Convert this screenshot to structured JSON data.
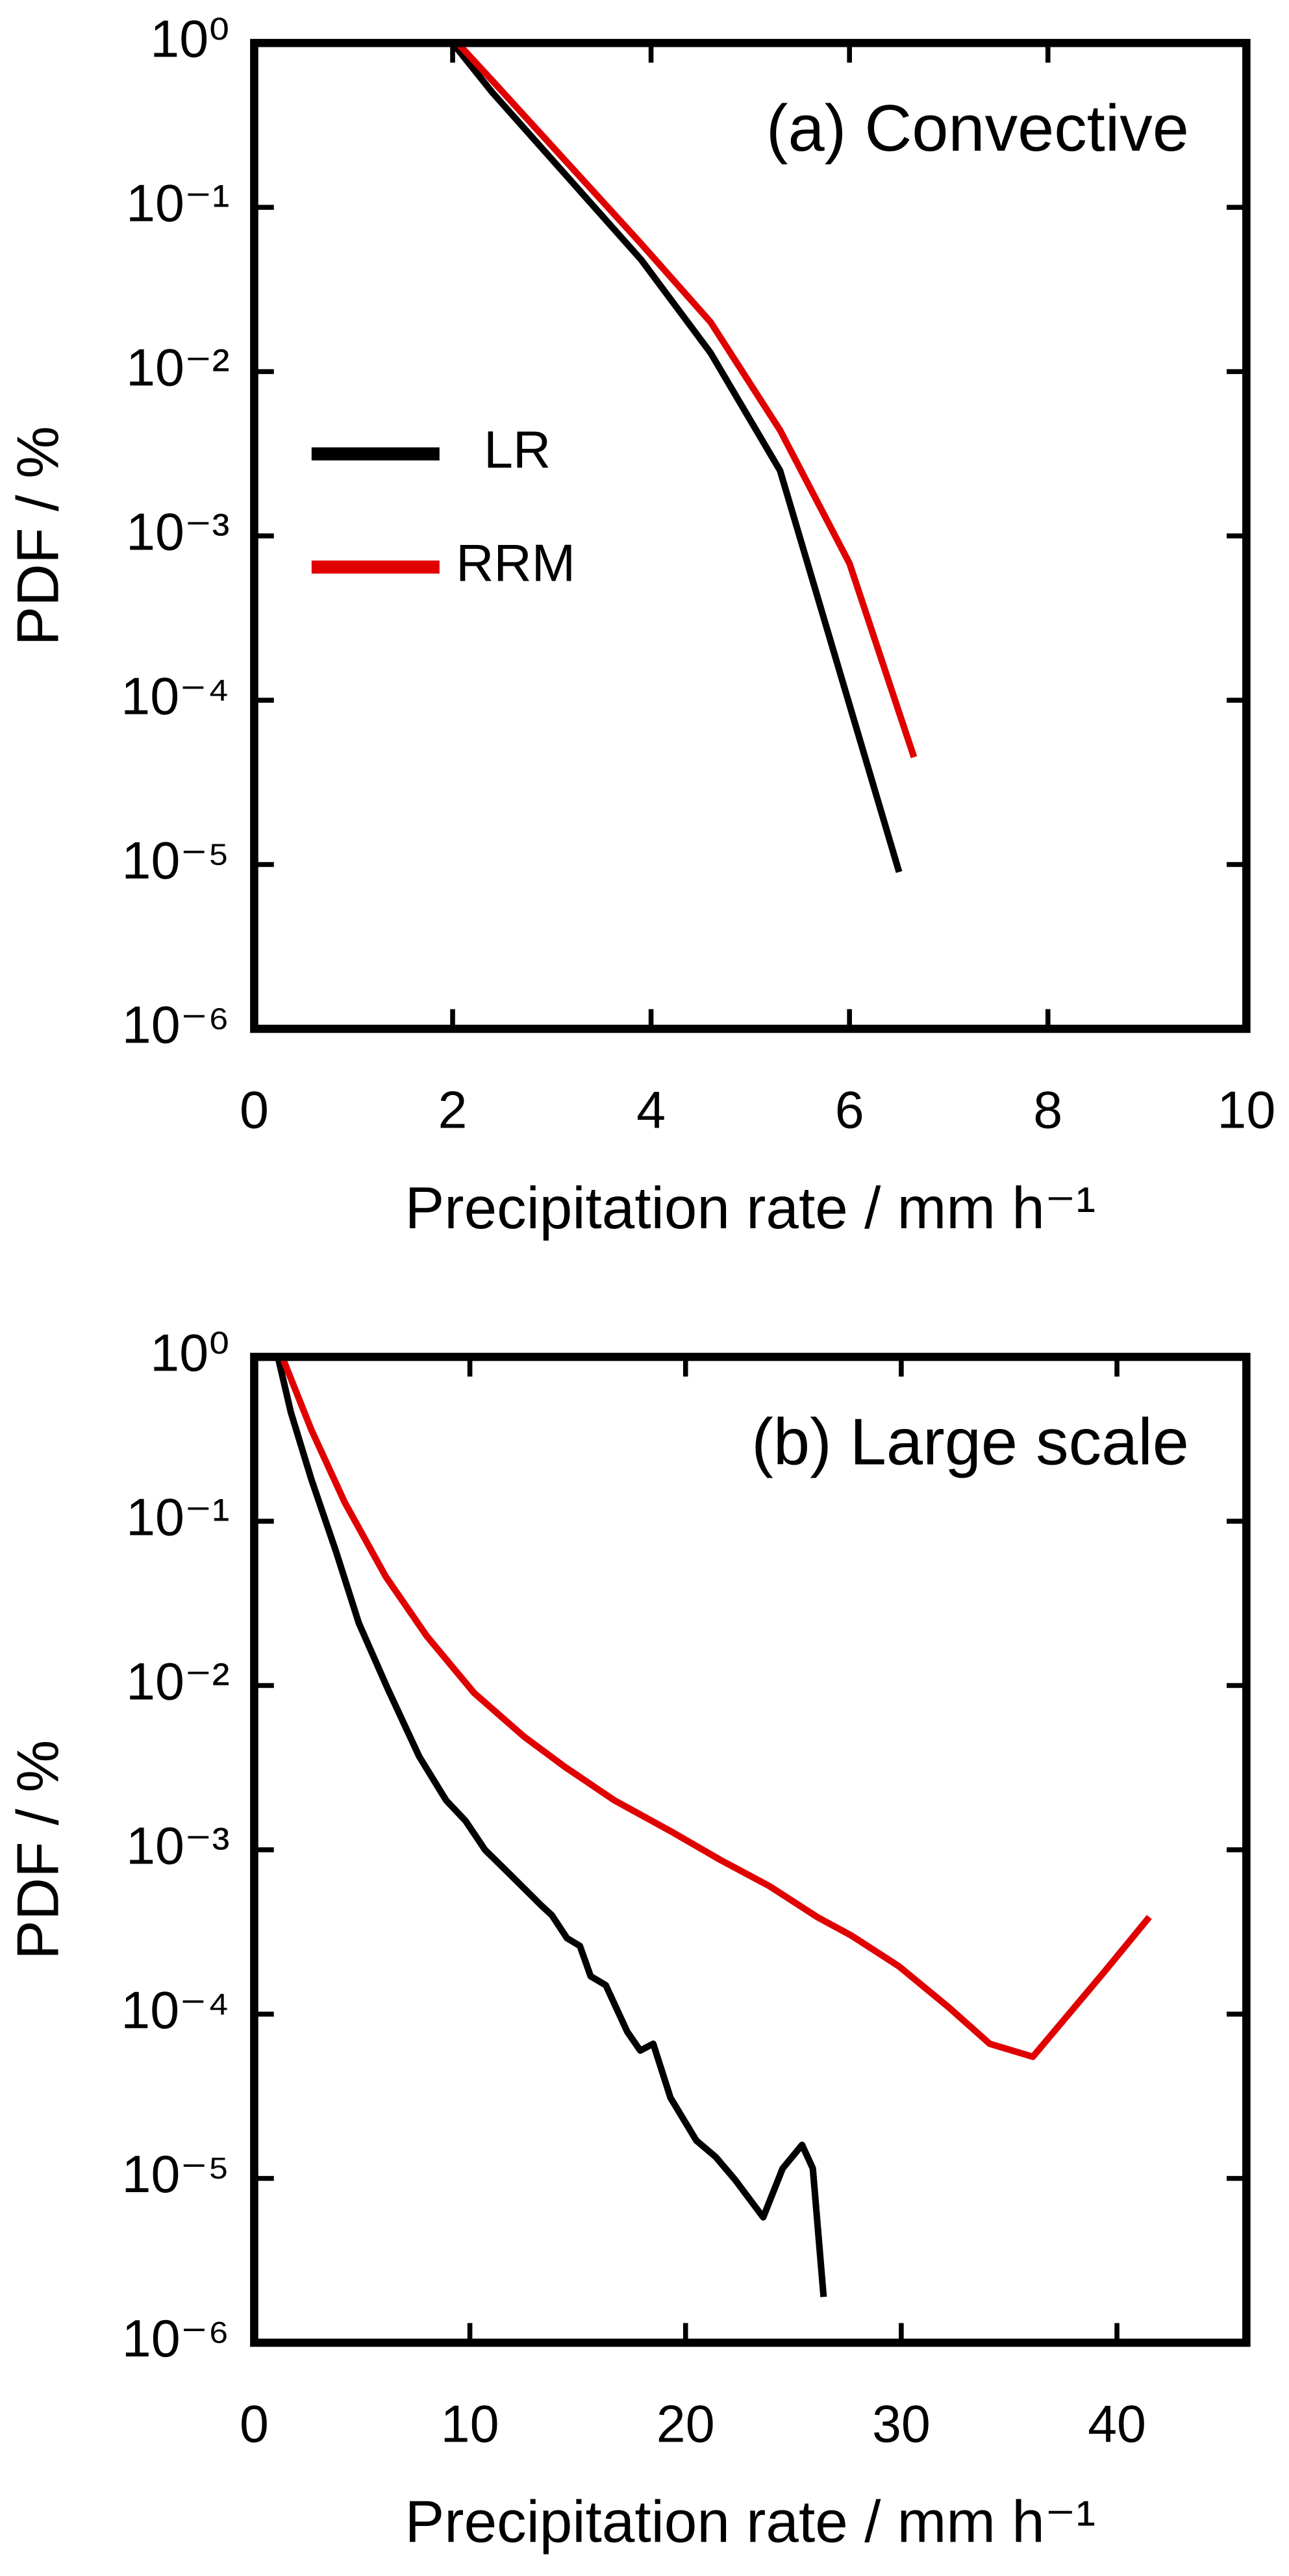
{
  "chart_data": [
    {
      "type": "line",
      "title": "(a) Convective",
      "xlabel": "Precipitation rate / mm h⁻¹",
      "ylabel": "PDF / %",
      "log_y": true,
      "legend": "center left",
      "xlim": [
        0,
        10
      ],
      "xticks": [
        0,
        2,
        4,
        6,
        8,
        10
      ],
      "ylim": [
        1e-06,
        1
      ],
      "yticks": [
        {
          "value": 1,
          "label": "10⁰"
        },
        {
          "value": 0.1,
          "label": "10⁻¹"
        },
        {
          "value": 0.01,
          "label": "10⁻²"
        },
        {
          "value": 0.001,
          "label": "10⁻³"
        },
        {
          "value": 0.0001,
          "label": "10⁻⁴"
        },
        {
          "value": 1e-05,
          "label": "10⁻⁵"
        },
        {
          "value": 1e-06,
          "label": "10⁻⁶"
        }
      ],
      "series": [
        {
          "name": "LR",
          "color": "#000000",
          "x": [
            2.0,
            2.4,
            3.9,
            4.6,
            5.3,
            6.5
          ],
          "values": [
            1,
            0.5,
            0.048,
            0.013,
            0.0025,
            9e-06
          ]
        },
        {
          "name": "RRM",
          "color": "#e00000",
          "x": [
            2.05,
            2.4,
            3.9,
            4.6,
            5.3,
            6.0,
            6.65
          ],
          "values": [
            1,
            0.59,
            0.06,
            0.02,
            0.0044,
            0.00068,
            4.5e-05
          ]
        }
      ]
    },
    {
      "type": "line",
      "title": "(b) Large scale",
      "xlabel": "Precipitation rate / mm h⁻¹",
      "ylabel": "PDF / %",
      "log_y": true,
      "xlim": [
        0,
        46
      ],
      "xticks": [
        0,
        10,
        20,
        30,
        40
      ],
      "ylim": [
        1e-06,
        1
      ],
      "yticks": [
        {
          "value": 1,
          "label": "10⁰"
        },
        {
          "value": 0.1,
          "label": "10⁻¹"
        },
        {
          "value": 0.01,
          "label": "10⁻²"
        },
        {
          "value": 0.001,
          "label": "10⁻³"
        },
        {
          "value": 0.0001,
          "label": "10⁻⁴"
        },
        {
          "value": 1e-05,
          "label": "10⁻⁵"
        },
        {
          "value": 1e-06,
          "label": "10⁻⁶"
        }
      ],
      "series": [
        {
          "color": "#000000",
          "x": [
            1.1,
            1.7,
            2.65,
            3.8,
            4.85,
            6.2,
            7.65,
            8.9,
            9.8,
            10.7,
            11.9,
            13.3,
            13.8,
            14.5,
            15.1,
            15.6,
            16.3,
            17.3,
            17.9,
            18.5,
            19.3,
            20.5,
            21.4,
            22.3,
            23.6,
            24.5,
            25.4,
            25.9,
            26.4
          ],
          "values": [
            1,
            0.46,
            0.18,
            0.065,
            0.024,
            0.0095,
            0.0037,
            0.002,
            0.0015,
            0.001,
            0.0007,
            0.00046,
            0.0004,
            0.00029,
            0.00026,
            0.00017,
            0.00015,
            7.8e-05,
            6e-05,
            6.6e-05,
            3.1e-05,
            1.7e-05,
            1.35e-05,
            9.8e-06,
            5.8e-06,
            1.15e-05,
            1.6e-05,
            1.15e-05,
            1.9e-06
          ]
        },
        {
          "color": "#e00000",
          "x": [
            1.3,
            2.65,
            4.2,
            6.1,
            8.0,
            10.2,
            12.5,
            14.4,
            16.7,
            19.3,
            21.6,
            23.9,
            26.1,
            27.7,
            29.9,
            32.2,
            34.1,
            36.1,
            39.4,
            41.5
          ],
          "values": [
            1,
            0.36,
            0.13,
            0.046,
            0.02,
            0.009,
            0.0049,
            0.0032,
            0.002,
            0.0013,
            0.00087,
            0.0006,
            0.00039,
            0.0003,
            0.000195,
            0.00011,
            6.6e-05,
            5.5e-05,
            0.00018,
            0.00039
          ]
        }
      ]
    }
  ]
}
